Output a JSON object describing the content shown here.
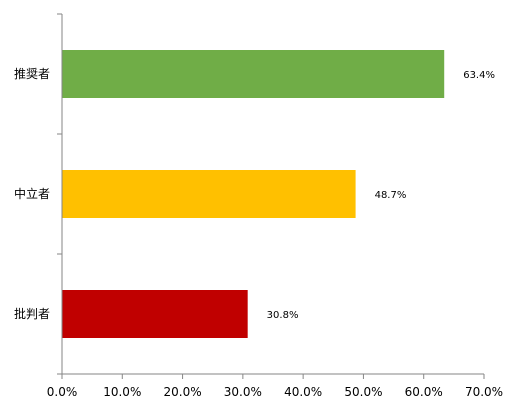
{
  "chart_data": {
    "type": "bar",
    "orientation": "horizontal",
    "categories": [
      "推奨者",
      "中立者",
      "批判者"
    ],
    "values": [
      63.4,
      48.7,
      30.8
    ],
    "data_labels": [
      "63.4%",
      "48.7%",
      "30.8%"
    ],
    "colors": [
      "#70AD47",
      "#FFC000",
      "#C00000"
    ],
    "xlim": [
      0,
      70
    ],
    "xticks": [
      0,
      10,
      20,
      30,
      40,
      50,
      60,
      70
    ],
    "xtick_labels": [
      "0.0%",
      "10.0%",
      "20.0%",
      "30.0%",
      "40.0%",
      "50.0%",
      "60.0%",
      "70.0%"
    ],
    "title": "",
    "xlabel": "",
    "ylabel": "",
    "grid": false,
    "legend": "none"
  }
}
